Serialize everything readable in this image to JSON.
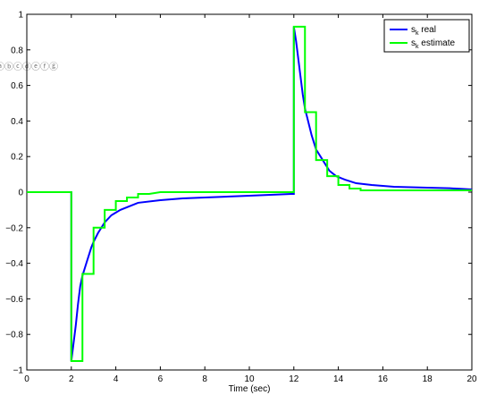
{
  "chart_data": {
    "type": "line",
    "xlabel": "Time (sec)",
    "xlim": [
      0,
      20
    ],
    "ylim": [
      -1,
      1
    ],
    "xticks": [
      0,
      2,
      4,
      6,
      8,
      10,
      12,
      14,
      16,
      18,
      20
    ],
    "yticks": [
      -1,
      -0.8,
      -0.6,
      -0.4,
      -0.2,
      0,
      0.2,
      0.4,
      0.6,
      0.8,
      1
    ],
    "xtick_labels": [
      "0",
      "2",
      "4",
      "6",
      "8",
      "10",
      "12",
      "14",
      "16",
      "18",
      "20"
    ],
    "ytick_labels": [
      "−1",
      "−0.8",
      "−0.6",
      "−0.4",
      "−0.2",
      "0",
      "0.2",
      "0.4",
      "0.6",
      "0.8",
      "1"
    ],
    "grid": false,
    "legend_position": "top-right",
    "series": [
      {
        "name_base": "s",
        "name_sub": "k",
        "name_rest": " real",
        "color": "#0000ff",
        "step": true,
        "points": [
          [
            0,
            0
          ],
          [
            2.0,
            0
          ],
          [
            2.0,
            -0.95
          ],
          [
            2.1,
            -0.85
          ],
          [
            2.2,
            -0.75
          ],
          [
            2.3,
            -0.63
          ],
          [
            2.4,
            -0.53
          ],
          [
            2.5,
            -0.47
          ],
          [
            2.6,
            -0.43
          ],
          [
            2.7,
            -0.39
          ],
          [
            2.8,
            -0.35
          ],
          [
            2.9,
            -0.31
          ],
          [
            3.0,
            -0.28
          ],
          [
            3.2,
            -0.23
          ],
          [
            3.5,
            -0.17
          ],
          [
            3.8,
            -0.13
          ],
          [
            4.2,
            -0.1
          ],
          [
            4.6,
            -0.08
          ],
          [
            5.0,
            -0.06
          ],
          [
            6.0,
            -0.045
          ],
          [
            7.0,
            -0.035
          ],
          [
            8.0,
            -0.03
          ],
          [
            10.0,
            -0.02
          ],
          [
            11.9,
            -0.01
          ],
          [
            12.0,
            -0.01
          ],
          [
            12.0,
            0.93
          ],
          [
            12.1,
            0.85
          ],
          [
            12.2,
            0.75
          ],
          [
            12.3,
            0.65
          ],
          [
            12.4,
            0.55
          ],
          [
            12.5,
            0.47
          ],
          [
            12.6,
            0.42
          ],
          [
            12.7,
            0.37
          ],
          [
            12.8,
            0.32
          ],
          [
            12.9,
            0.28
          ],
          [
            13.0,
            0.24
          ],
          [
            13.2,
            0.2
          ],
          [
            13.4,
            0.16
          ],
          [
            13.6,
            0.12
          ],
          [
            13.9,
            0.09
          ],
          [
            14.3,
            0.07
          ],
          [
            14.8,
            0.05
          ],
          [
            15.5,
            0.04
          ],
          [
            16.5,
            0.03
          ],
          [
            18.0,
            0.025
          ],
          [
            19.0,
            0.022
          ],
          [
            20.0,
            0.015
          ]
        ]
      },
      {
        "name_base": "s",
        "name_sub": "k",
        "name_rest": " estimate",
        "color": "#00ff00",
        "step": true,
        "points": [
          [
            0,
            0
          ],
          [
            2.0,
            0
          ],
          [
            2.0,
            -0.95
          ],
          [
            2.5,
            -0.95
          ],
          [
            2.5,
            -0.46
          ],
          [
            3.0,
            -0.46
          ],
          [
            3.0,
            -0.2
          ],
          [
            3.5,
            -0.2
          ],
          [
            3.5,
            -0.1
          ],
          [
            4.0,
            -0.1
          ],
          [
            4.0,
            -0.05
          ],
          [
            4.5,
            -0.05
          ],
          [
            4.5,
            -0.03
          ],
          [
            5.0,
            -0.03
          ],
          [
            5.0,
            -0.01
          ],
          [
            5.5,
            -0.01
          ],
          [
            6.0,
            0.0
          ],
          [
            12.0,
            0.0
          ],
          [
            12.0,
            0.93
          ],
          [
            12.5,
            0.93
          ],
          [
            12.5,
            0.45
          ],
          [
            13.0,
            0.45
          ],
          [
            13.0,
            0.18
          ],
          [
            13.5,
            0.18
          ],
          [
            13.5,
            0.09
          ],
          [
            14.0,
            0.09
          ],
          [
            14.0,
            0.04
          ],
          [
            14.5,
            0.04
          ],
          [
            14.5,
            0.02
          ],
          [
            15.0,
            0.02
          ],
          [
            15.0,
            0.01
          ],
          [
            20.0,
            0.01
          ]
        ]
      }
    ]
  }
}
